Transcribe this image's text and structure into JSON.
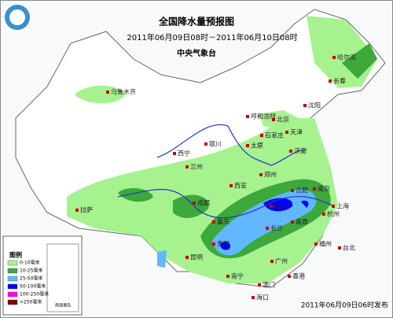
{
  "header": {
    "title": "全国降水量预报图",
    "period": "2011年06月09日08时－2011年06月10日08时",
    "issuer": "中央气象台"
  },
  "cities": [
    "乌鲁木齐",
    "哈尔滨",
    "长春",
    "沈阳",
    "北京",
    "天津",
    "呼和浩特",
    "石家庄",
    "太原",
    "银川",
    "西宁",
    "兰州",
    "济南",
    "郑州",
    "西安",
    "合肥",
    "南京",
    "上海",
    "武汉",
    "成都",
    "重庆",
    "拉萨",
    "长沙",
    "南昌",
    "杭州",
    "贵阳",
    "昆明",
    "福州",
    "南宁",
    "广州",
    "香港",
    "澳门",
    "台北",
    "海口"
  ],
  "legend": {
    "title": "图例",
    "items": [
      {
        "label": "0-10毫米",
        "color": "#a6f28f"
      },
      {
        "label": "10-25毫米",
        "color": "#3da83c"
      },
      {
        "label": "25-50毫米",
        "color": "#61b8ff"
      },
      {
        "label": "50-100毫米",
        "color": "#0000fe"
      },
      {
        "label": "100-250毫米",
        "color": "#fa00fa"
      },
      {
        "label": ">250毫米",
        "color": "#800000"
      }
    ]
  },
  "inset_label": "南海诸岛",
  "footer": "2011年06月09日06时发布"
}
